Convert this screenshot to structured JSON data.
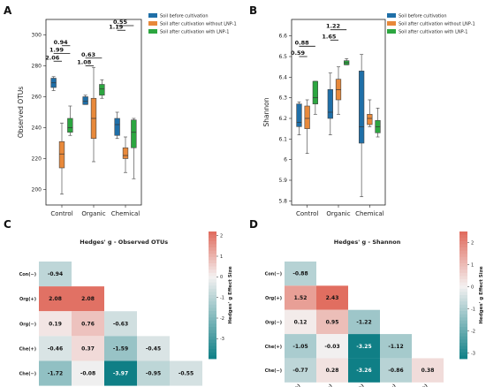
{
  "colors": {
    "before": "#1f6fa8",
    "without": "#e8893a",
    "with": "#2ca640",
    "heat_low": "#0f7f86",
    "heat_mid": "#f4f1f1",
    "heat_high": "#e06a5c"
  },
  "chart_data": [
    {
      "panel": "A",
      "type": "box",
      "ylabel": "Observed OTUs",
      "ylim": [
        190,
        310
      ],
      "yticks": [
        200,
        220,
        240,
        260,
        280,
        300
      ],
      "categories": [
        "Control",
        "Organic",
        "Chemical"
      ],
      "legend": [
        "Soil before cultivation",
        "Soil after cultivation without LNP-1",
        "Soil after cultivation with LNP-1"
      ],
      "legend_loc": "top-right",
      "series": [
        {
          "name": "Soil before cultivation",
          "boxes": [
            {
              "min": 264,
              "q1": 266,
              "median": 269,
              "q3": 272,
              "max": 273
            },
            {
              "min": 255,
              "q1": 255,
              "median": 257,
              "q3": 260,
              "max": 261
            },
            {
              "min": 233,
              "q1": 235,
              "median": 242,
              "q3": 246,
              "max": 250
            }
          ]
        },
        {
          "name": "Soil after cultivation without LNP-1",
          "boxes": [
            {
              "min": 197,
              "q1": 214,
              "median": 223,
              "q3": 231,
              "max": 243
            },
            {
              "min": 218,
              "q1": 233,
              "median": 246,
              "q3": 259,
              "max": 279
            },
            {
              "min": 211,
              "q1": 220,
              "median": 222,
              "q3": 227,
              "max": 234
            }
          ]
        },
        {
          "name": "Soil after cultivation with LNP-1",
          "boxes": [
            {
              "min": 235,
              "q1": 237,
              "median": 240,
              "q3": 246,
              "max": 254
            },
            {
              "min": 259,
              "q1": 261,
              "median": 265,
              "q3": 268,
              "max": 271
            },
            {
              "min": 207,
              "q1": 227,
              "median": 237,
              "q3": 245,
              "max": 246
            }
          ]
        }
      ],
      "annotations": [
        {
          "label": "2.06",
          "x1": 0,
          "x2": 1,
          "y": 283
        },
        {
          "label": "1.99",
          "x1": 0,
          "x2": 2,
          "y": 288
        },
        {
          "label": "0.94",
          "x1": 1,
          "x2": 2,
          "y": 293
        },
        {
          "label": "1.08",
          "x1": 3,
          "x2": 4,
          "y": 280
        },
        {
          "label": "0.63",
          "x1": 3,
          "x2": 5,
          "y": 285
        },
        {
          "label": "1.19",
          "x1": 6,
          "x2": 7,
          "y": 303
        },
        {
          "label": "0.55",
          "x1": 6,
          "x2": 8,
          "y": 306
        }
      ]
    },
    {
      "panel": "B",
      "type": "box",
      "ylabel": "Shannon",
      "ylim": [
        5.78,
        6.68
      ],
      "yticks": [
        5.8,
        5.9,
        6.0,
        6.1,
        6.2,
        6.3,
        6.4,
        6.5,
        6.6
      ],
      "categories": [
        "Control",
        "Organic",
        "Chemical"
      ],
      "legend": [
        "Soil before cultivation",
        "Soil after cultivation without LNP-1",
        "Soil after cultivation with LNP-1"
      ],
      "legend_loc": "top-right",
      "series": [
        {
          "name": "Soil before cultivation",
          "boxes": [
            {
              "min": 6.12,
              "q1": 6.16,
              "median": 6.18,
              "q3": 6.27,
              "max": 6.28
            },
            {
              "min": 6.12,
              "q1": 6.2,
              "median": 6.23,
              "q3": 6.34,
              "max": 6.42
            },
            {
              "min": 5.82,
              "q1": 6.08,
              "median": 6.16,
              "q3": 6.43,
              "max": 6.51
            }
          ]
        },
        {
          "name": "Soil after cultivation without LNP-1",
          "boxes": [
            {
              "min": 6.03,
              "q1": 6.15,
              "median": 6.2,
              "q3": 6.26,
              "max": 6.29
            },
            {
              "min": 6.22,
              "q1": 6.29,
              "median": 6.34,
              "q3": 6.39,
              "max": 6.45
            },
            {
              "min": 6.16,
              "q1": 6.17,
              "median": 6.2,
              "q3": 6.22,
              "max": 6.29
            }
          ]
        },
        {
          "name": "Soil after cultivation with LNP-1",
          "boxes": [
            {
              "min": 6.22,
              "q1": 6.27,
              "median": 6.3,
              "q3": 6.38,
              "max": 6.38
            },
            {
              "min": 6.46,
              "q1": 6.46,
              "median": 6.47,
              "q3": 6.48,
              "max": 6.49
            },
            {
              "min": 6.11,
              "q1": 6.13,
              "median": 6.16,
              "q3": 6.19,
              "max": 6.25
            }
          ]
        }
      ],
      "annotations": [
        {
          "label": "0.59",
          "x1": 0,
          "x2": 1,
          "y": 6.5
        },
        {
          "label": "0.88",
          "x1": 0,
          "x2": 2,
          "y": 6.55
        },
        {
          "label": "1.65",
          "x1": 3,
          "x2": 4,
          "y": 6.58
        },
        {
          "label": "1.22",
          "x1": 3,
          "x2": 5,
          "y": 6.63
        }
      ]
    },
    {
      "panel": "C",
      "type": "heatmap",
      "title": "Hedges' g - Observed OTUs",
      "row_labels": [
        "Con(−)",
        "Org(+)",
        "Org(−)",
        "Che(+)",
        "Che(−)"
      ],
      "col_labels": [
        "Con(+)",
        "Con(−)",
        "Org(+)",
        "Org(−)",
        "Che(+)"
      ],
      "cells": [
        [
          "-0.94"
        ],
        [
          "2.08",
          "2.08"
        ],
        [
          "0.19",
          "0.76",
          "-0.63"
        ],
        [
          "-0.46",
          "0.37",
          "-1.59",
          "-0.45"
        ],
        [
          "-1.72",
          "-0.08",
          "-3.97",
          "-0.95",
          "-0.55"
        ]
      ],
      "colorbar": {
        "label": "Hedges' g Effect Size",
        "vmin": -3.97,
        "vmax": 2.2,
        "ticks": [
          "2",
          "1",
          "0",
          "-1",
          "-2",
          "-3"
        ]
      }
    },
    {
      "panel": "D",
      "type": "heatmap",
      "title": "Hedges' g - Shannon",
      "row_labels": [
        "Con(−)",
        "Org(+)",
        "Org(−)",
        "Che(+)",
        "Che(−)"
      ],
      "col_labels": [
        "Con(+)",
        "Con(−)",
        "Org(+)",
        "Org(−)",
        "Che(+)"
      ],
      "cells": [
        [
          "-0.88"
        ],
        [
          "1.52",
          "2.43"
        ],
        [
          "0.12",
          "0.95",
          "-1.22"
        ],
        [
          "-1.05",
          "-0.03",
          "-3.25",
          "-1.12"
        ],
        [
          "-0.77",
          "0.28",
          "-3.26",
          "-0.86",
          "0.38"
        ]
      ],
      "colorbar": {
        "label": "Hedges' g Effect Size",
        "vmin": -3.26,
        "vmax": 2.5,
        "ticks": [
          "2",
          "1",
          "0",
          "-1",
          "-2",
          "-3"
        ]
      }
    }
  ]
}
